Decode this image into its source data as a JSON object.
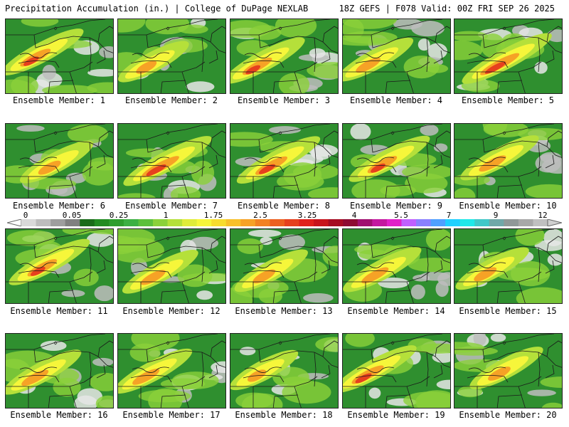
{
  "header": {
    "left": "Precipitation Accumulation (in.) | College of DuPage NEXLAB",
    "right": "18Z GEFS | F078 Valid: 00Z FRI SEP 26 2025"
  },
  "members": [
    {
      "label": "Ensemble Member: 1",
      "intensity": 0.62
    },
    {
      "label": "Ensemble Member: 2",
      "intensity": 0.4
    },
    {
      "label": "Ensemble Member: 3",
      "intensity": 0.6
    },
    {
      "label": "Ensemble Member: 4",
      "intensity": 0.5
    },
    {
      "label": "Ensemble Member: 5",
      "intensity": 0.78
    },
    {
      "label": "Ensemble Member: 6",
      "intensity": 0.45
    },
    {
      "label": "Ensemble Member: 7",
      "intensity": 0.75
    },
    {
      "label": "Ensemble Member: 8",
      "intensity": 0.65
    },
    {
      "label": "Ensemble Member: 9",
      "intensity": 0.6
    },
    {
      "label": "Ensemble Member: 10",
      "intensity": 0.55
    },
    {
      "label": "Ensemble Member: 11",
      "intensity": 0.6
    },
    {
      "label": "Ensemble Member: 12",
      "intensity": 0.5
    },
    {
      "label": "Ensemble Member: 13",
      "intensity": 0.45
    },
    {
      "label": "Ensemble Member: 14",
      "intensity": 0.55
    },
    {
      "label": "Ensemble Member: 15",
      "intensity": 0.45
    },
    {
      "label": "Ensemble Member: 16",
      "intensity": 0.55
    },
    {
      "label": "Ensemble Member: 17",
      "intensity": 0.55
    },
    {
      "label": "Ensemble Member: 18",
      "intensity": 0.35
    },
    {
      "label": "Ensemble Member: 19",
      "intensity": 0.65
    },
    {
      "label": "Ensemble Member: 20",
      "intensity": 0.45
    }
  ],
  "colorbar": {
    "tick_labels": [
      "0",
      "0.05",
      "0.25",
      "1",
      "1.75",
      "2.5",
      "3.25",
      "4",
      "5.5",
      "7",
      "9",
      "12"
    ],
    "colors": [
      "#d9d9d9",
      "#bdbdbd",
      "#9e9e9e",
      "#808080",
      "#1a6b1a",
      "#228b22",
      "#2e9e2e",
      "#3cb043",
      "#5cc03c",
      "#8bd13a",
      "#b5e03a",
      "#e0ec3a",
      "#f6f63a",
      "#f8dc2e",
      "#f8c02a",
      "#f6a226",
      "#f28222",
      "#ec6020",
      "#e6401e",
      "#e0201c",
      "#c8141c",
      "#a60c22",
      "#8e0a32",
      "#a01070",
      "#c418a0",
      "#e020c8",
      "#c060ff",
      "#8a80ff",
      "#50a0ff",
      "#20d0ff",
      "#20e8e8",
      "#40c8c8",
      "#70a8a8",
      "#909898",
      "#a8a8a8",
      "#c0c0c0"
    ]
  }
}
